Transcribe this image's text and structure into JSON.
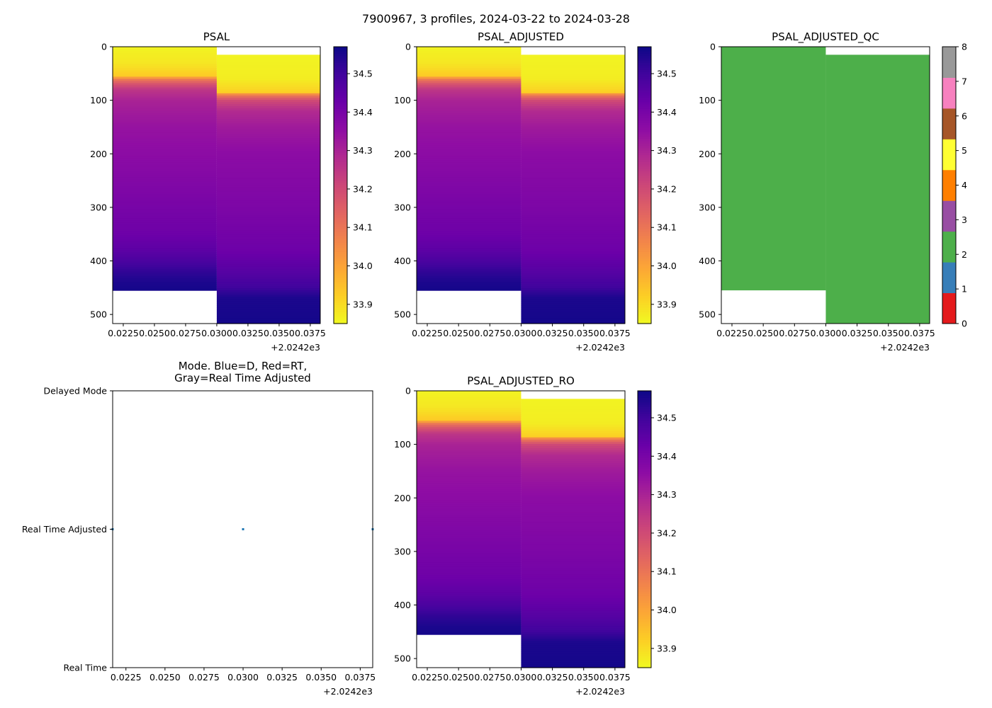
{
  "figure": {
    "suptitle": "7900967, 3 profiles, 2024-03-22 to 2024-03-28"
  },
  "colormaps": {
    "plasma": [
      "#0d0887",
      "#41049d",
      "#6a00a8",
      "#8f0da4",
      "#b12a90",
      "#cc4778",
      "#e16462",
      "#f2844b",
      "#fca636",
      "#fcce25",
      "#f0f921"
    ],
    "qc_classes": [
      {
        "value": 0,
        "color": "#e41a1c"
      },
      {
        "value": 1,
        "color": "#377eb8"
      },
      {
        "value": 2,
        "color": "#4daf4a"
      },
      {
        "value": 3,
        "color": "#984ea3"
      },
      {
        "value": 4,
        "color": "#ff7f00"
      },
      {
        "value": 5,
        "color": "#ffff33"
      },
      {
        "value": 6,
        "color": "#a65628"
      },
      {
        "value": 7,
        "color": "#f781bf"
      },
      {
        "value": 8,
        "color": "#999999"
      }
    ]
  },
  "chart_data": [
    {
      "id": "psal",
      "type": "heatmap",
      "title": "PSAL",
      "xlabel": "",
      "ylabel": "",
      "x_offset_label": "+2.0242e3",
      "xlim": [
        0.02165,
        0.0383
      ],
      "ylim": [
        517,
        0
      ],
      "xticks": [
        "0.0225",
        "0.0250",
        "0.0275",
        "0.0300",
        "0.0325",
        "0.0350",
        "0.0375"
      ],
      "xtick_values": [
        0.0225,
        0.025,
        0.0275,
        0.03,
        0.0325,
        0.035,
        0.0375
      ],
      "yticks": [
        0,
        100,
        200,
        300,
        400,
        500
      ],
      "colorbar": {
        "range": [
          33.85,
          34.57
        ],
        "ticks": [
          "33.9",
          "34.0",
          "34.1",
          "34.2",
          "34.3",
          "34.4",
          "34.5"
        ],
        "tick_values": [
          33.9,
          34.0,
          34.1,
          34.2,
          34.3,
          34.4,
          34.5
        ]
      },
      "profiles": [
        {
          "x_start": 0.02165,
          "x_end": 0.03,
          "depth_min": 0,
          "depth_max": 455,
          "depths": [
            0,
            30,
            55,
            60,
            70,
            80,
            100,
            150,
            200,
            300,
            350,
            380,
            400,
            420,
            440,
            455
          ],
          "values": [
            33.86,
            33.88,
            33.93,
            34.08,
            34.18,
            34.25,
            34.3,
            34.34,
            34.36,
            34.4,
            34.42,
            34.45,
            34.48,
            34.52,
            34.55,
            34.56
          ]
        },
        {
          "x_start": 0.03,
          "x_end": 0.0383,
          "depth_min": 15,
          "depth_max": 517,
          "depths": [
            15,
            60,
            85,
            90,
            100,
            120,
            150,
            200,
            300,
            380,
            420,
            450,
            470,
            517
          ],
          "values": [
            33.86,
            33.87,
            33.92,
            34.08,
            34.2,
            34.28,
            34.32,
            34.36,
            34.39,
            34.42,
            34.46,
            34.5,
            34.55,
            34.56
          ]
        }
      ]
    },
    {
      "id": "psal_adjusted",
      "type": "heatmap",
      "title": "PSAL_ADJUSTED",
      "xlabel": "",
      "ylabel": "",
      "x_offset_label": "+2.0242e3",
      "xlim": [
        0.02165,
        0.0383
      ],
      "ylim": [
        517,
        0
      ],
      "xticks": [
        "0.0225",
        "0.0250",
        "0.0275",
        "0.0300",
        "0.0325",
        "0.0350",
        "0.0375"
      ],
      "xtick_values": [
        0.0225,
        0.025,
        0.0275,
        0.03,
        0.0325,
        0.035,
        0.0375
      ],
      "yticks": [
        0,
        100,
        200,
        300,
        400,
        500
      ],
      "colorbar": {
        "range": [
          33.85,
          34.57
        ],
        "ticks": [
          "33.9",
          "34.0",
          "34.1",
          "34.2",
          "34.3",
          "34.4",
          "34.5"
        ],
        "tick_values": [
          33.9,
          34.0,
          34.1,
          34.2,
          34.3,
          34.4,
          34.5
        ]
      },
      "profiles": [
        {
          "x_start": 0.02165,
          "x_end": 0.03,
          "depth_min": 0,
          "depth_max": 455,
          "depths": [
            0,
            30,
            55,
            60,
            70,
            80,
            100,
            150,
            200,
            300,
            350,
            380,
            400,
            420,
            440,
            455
          ],
          "values": [
            33.86,
            33.88,
            33.93,
            34.08,
            34.18,
            34.25,
            34.3,
            34.34,
            34.36,
            34.4,
            34.42,
            34.45,
            34.48,
            34.52,
            34.55,
            34.56
          ]
        },
        {
          "x_start": 0.03,
          "x_end": 0.0383,
          "depth_min": 15,
          "depth_max": 517,
          "depths": [
            15,
            60,
            85,
            90,
            100,
            120,
            150,
            200,
            300,
            380,
            420,
            450,
            470,
            517
          ],
          "values": [
            33.86,
            33.87,
            33.92,
            34.08,
            34.2,
            34.28,
            34.32,
            34.36,
            34.39,
            34.42,
            34.46,
            34.5,
            34.55,
            34.56
          ]
        }
      ]
    },
    {
      "id": "psal_adjusted_qc",
      "type": "heatmap",
      "title": "PSAL_ADJUSTED_QC",
      "xlabel": "",
      "ylabel": "",
      "x_offset_label": "+2.0242e3",
      "xlim": [
        0.02165,
        0.0383
      ],
      "ylim": [
        517,
        0
      ],
      "xticks": [
        "0.0225",
        "0.0250",
        "0.0275",
        "0.0300",
        "0.0325",
        "0.0350",
        "0.0375"
      ],
      "xtick_values": [
        0.0225,
        0.025,
        0.0275,
        0.03,
        0.0325,
        0.035,
        0.0375
      ],
      "yticks": [
        0,
        100,
        200,
        300,
        400,
        500
      ],
      "colorbar": {
        "range": [
          0,
          8
        ],
        "ticks": [
          "0",
          "1",
          "2",
          "3",
          "4",
          "5",
          "6",
          "7",
          "8"
        ],
        "tick_values": [
          0,
          1,
          2,
          3,
          4,
          5,
          6,
          7,
          8
        ],
        "discrete": true
      },
      "profiles": [
        {
          "x_start": 0.02165,
          "x_end": 0.03,
          "depth_min": 0,
          "depth_max": 455,
          "qc": 2
        },
        {
          "x_start": 0.03,
          "x_end": 0.0383,
          "depth_min": 15,
          "depth_max": 517,
          "qc": 2
        }
      ]
    },
    {
      "id": "mode",
      "type": "scatter",
      "title": "Mode. Blue=D, Red=RT,\nGray=Real Time Adjusted",
      "title_lines": [
        "Mode. Blue=D, Red=RT,",
        "Gray=Real Time Adjusted"
      ],
      "xlabel": "",
      "ylabel": "",
      "x_offset_label": "+2.0242e3",
      "xlim": [
        0.02165,
        0.0383
      ],
      "ylim": [
        0,
        2
      ],
      "xticks": [
        "0.0225",
        "0.0250",
        "0.0275",
        "0.0300",
        "0.0325",
        "0.0350",
        "0.0375"
      ],
      "xtick_values": [
        0.0225,
        0.025,
        0.0275,
        0.03,
        0.0325,
        0.035,
        0.0375
      ],
      "yticks": [
        "Real Time",
        "Real Time Adjusted",
        "Delayed Mode"
      ],
      "ytick_values": [
        0,
        1,
        2
      ],
      "points": [
        {
          "x": 0.02165,
          "y": 1,
          "color": "#1f77b4"
        },
        {
          "x": 0.03,
          "y": 1,
          "color": "#1f77b4"
        },
        {
          "x": 0.0383,
          "y": 1,
          "color": "#1f77b4"
        }
      ]
    },
    {
      "id": "psal_adjusted_ro",
      "type": "heatmap",
      "title": "PSAL_ADJUSTED_RO",
      "xlabel": "",
      "ylabel": "",
      "x_offset_label": "+2.0242e3",
      "xlim": [
        0.02165,
        0.0383
      ],
      "ylim": [
        517,
        0
      ],
      "xticks": [
        "0.0225",
        "0.0250",
        "0.0275",
        "0.0300",
        "0.0325",
        "0.0350",
        "0.0375"
      ],
      "xtick_values": [
        0.0225,
        0.025,
        0.0275,
        0.03,
        0.0325,
        0.035,
        0.0375
      ],
      "yticks": [
        0,
        100,
        200,
        300,
        400,
        500
      ],
      "colorbar": {
        "range": [
          33.85,
          34.57
        ],
        "ticks": [
          "33.9",
          "34.0",
          "34.1",
          "34.2",
          "34.3",
          "34.4",
          "34.5"
        ],
        "tick_values": [
          33.9,
          34.0,
          34.1,
          34.2,
          34.3,
          34.4,
          34.5
        ]
      },
      "profiles": [
        {
          "x_start": 0.02165,
          "x_end": 0.03,
          "depth_min": 0,
          "depth_max": 455,
          "depths": [
            0,
            30,
            55,
            60,
            70,
            80,
            100,
            150,
            200,
            300,
            350,
            380,
            400,
            420,
            440,
            455
          ],
          "values": [
            33.86,
            33.88,
            33.93,
            34.08,
            34.18,
            34.25,
            34.3,
            34.34,
            34.36,
            34.4,
            34.42,
            34.45,
            34.48,
            34.52,
            34.55,
            34.56
          ]
        },
        {
          "x_start": 0.03,
          "x_end": 0.0383,
          "depth_min": 15,
          "depth_max": 517,
          "depths": [
            15,
            60,
            85,
            90,
            100,
            120,
            150,
            200,
            300,
            380,
            420,
            450,
            470,
            517
          ],
          "values": [
            33.86,
            33.87,
            33.92,
            34.08,
            34.2,
            34.28,
            34.32,
            34.36,
            34.39,
            34.42,
            34.46,
            34.5,
            34.55,
            34.56
          ]
        }
      ]
    }
  ]
}
